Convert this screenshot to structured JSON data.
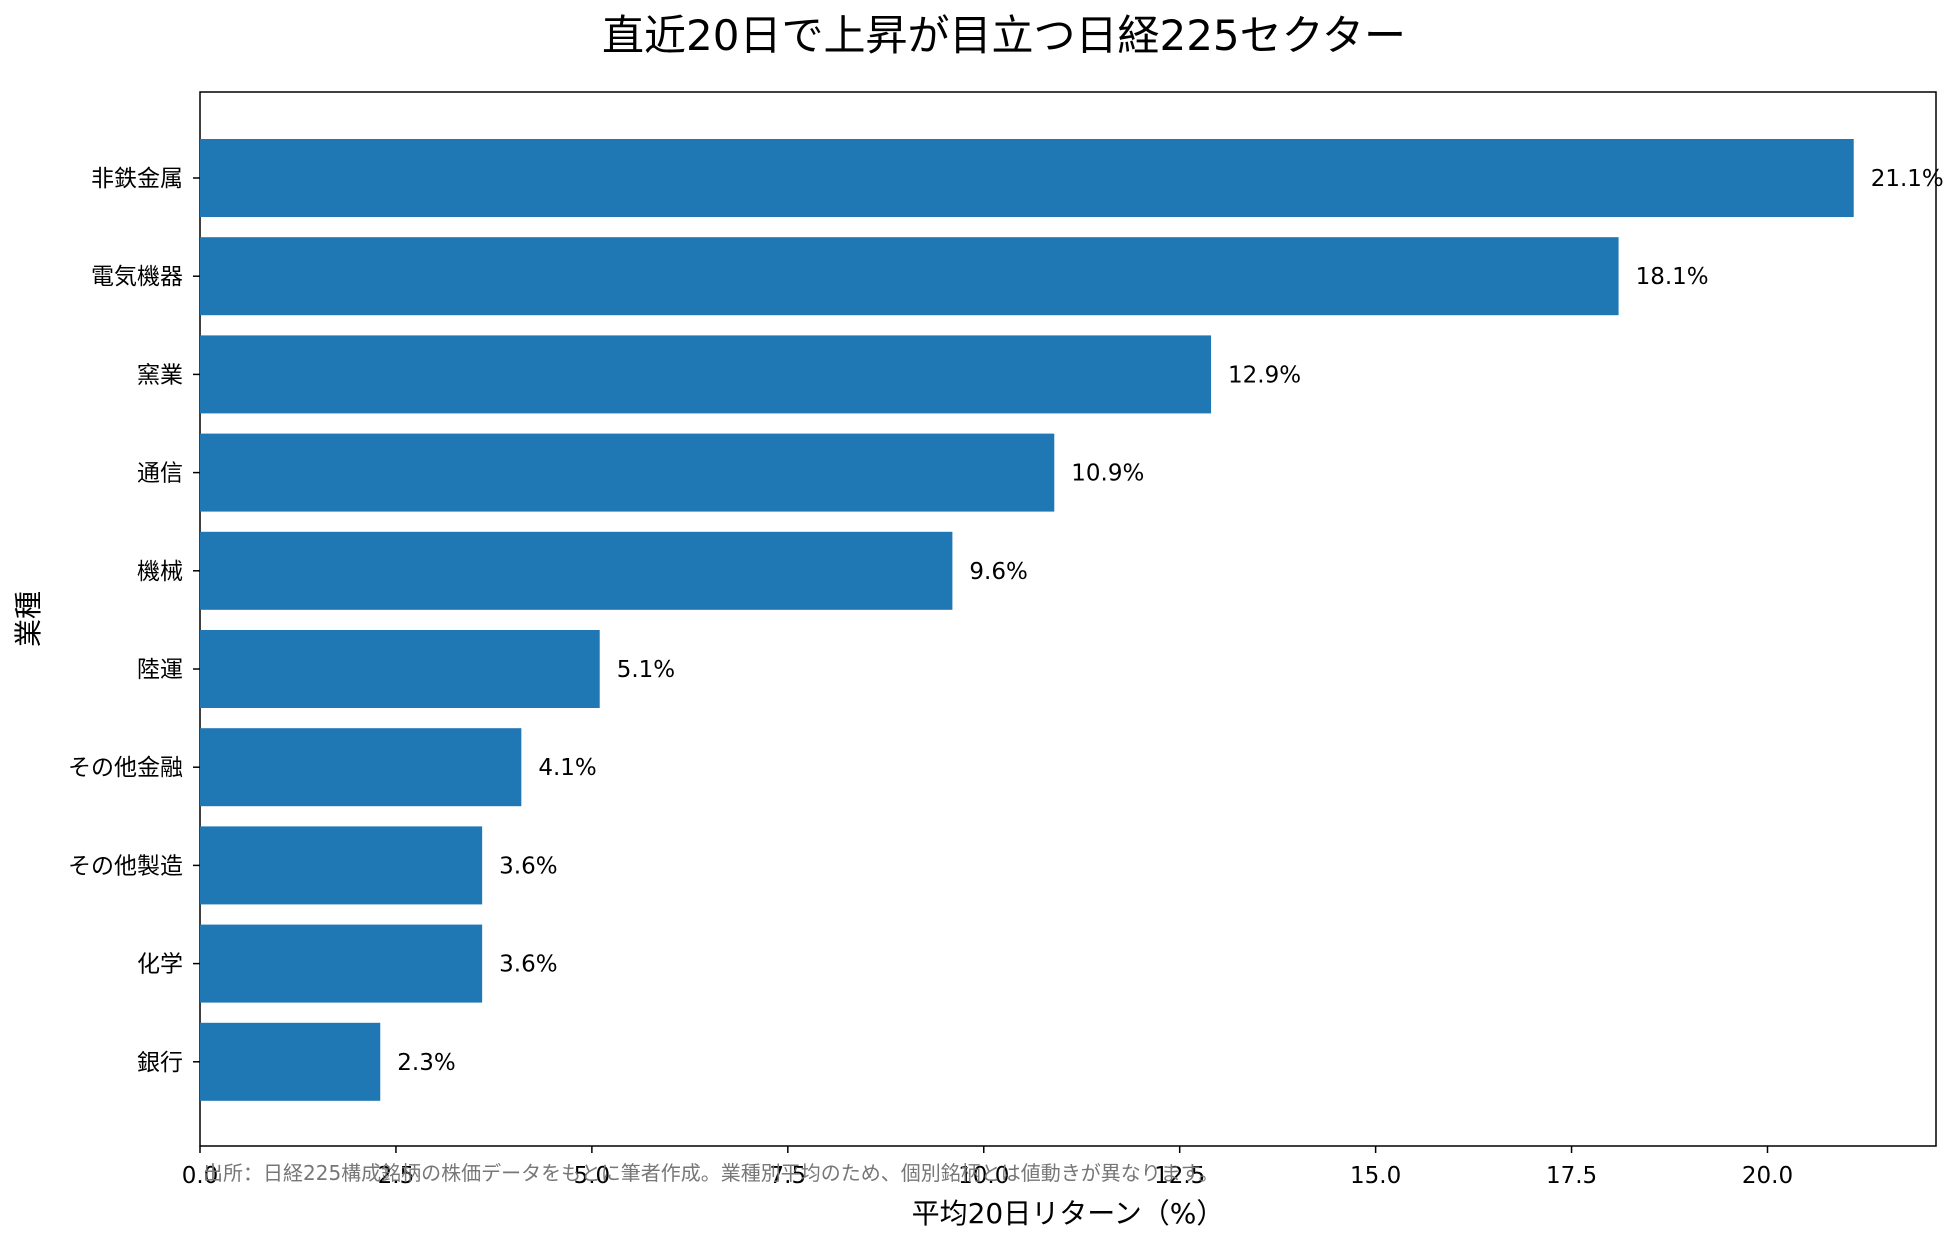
{
  "chart_data": {
    "type": "bar",
    "orientation": "horizontal",
    "title": "直近20日で上昇が目立つ日経225セクター",
    "xlabel": "平均20日リターン（%）",
    "ylabel": "業種",
    "categories": [
      "非鉄金属",
      "電気機器",
      "窯業",
      "通信",
      "機械",
      "陸運",
      "その他金融",
      "その他製造",
      "化学",
      "銀行"
    ],
    "values": [
      21.1,
      18.1,
      12.9,
      10.9,
      9.6,
      5.1,
      4.1,
      3.6,
      3.6,
      2.3
    ],
    "data_labels": [
      "21.1%",
      "18.1%",
      "12.9%",
      "10.9%",
      "9.6%",
      "5.1%",
      "4.1%",
      "3.6%",
      "3.6%",
      "2.3%"
    ],
    "xlim": [
      0,
      22.15
    ],
    "xticks": [
      "0.0",
      "2.5",
      "5.0",
      "7.5",
      "10.0",
      "12.5",
      "15.0",
      "17.5",
      "20.0"
    ],
    "grid": false,
    "legend": "none",
    "bar_color": "#1f77b4",
    "footnote": "出所：日経225構成銘柄の株価データをもとに筆者作成。業種別平均のため、個別銘柄とは値動きが異なります。"
  }
}
